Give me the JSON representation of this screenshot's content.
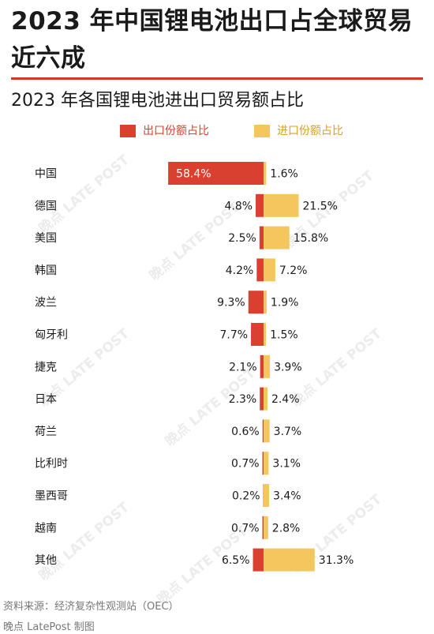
{
  "title": "2023 年中国锂电池出口占全球贸易近六成",
  "subtitle": "2023 年各国锂电池进出口贸易额占比",
  "source": "资料来源：经济复杂性观测站（OEC）",
  "credit": "晚点 LatePost 制图",
  "colors": {
    "export": "#d9402f",
    "import": "#f4c65e",
    "rule": "#d8382b",
    "watermark": "#ececec"
  },
  "watermark": "晚点 LATE POST",
  "chart_data": {
    "type": "bar",
    "orientation": "horizontal",
    "layout": "diverging",
    "unit": "%",
    "categories": [
      "中国",
      "德国",
      "美国",
      "韩国",
      "波兰",
      "匈牙利",
      "捷克",
      "日本",
      "荷兰",
      "比利时",
      "墨西哥",
      "越南",
      "其他"
    ],
    "series": [
      {
        "name": "出口份额占比",
        "direction": "left",
        "values": [
          58.4,
          4.8,
          2.5,
          4.2,
          9.3,
          7.7,
          2.1,
          2.3,
          0.6,
          0.7,
          0.2,
          0.7,
          6.5
        ],
        "labels": [
          "58.4%",
          "4.8%",
          "2.5%",
          "4.2%",
          "9.3%",
          "7.7%",
          "2.1%",
          "2.3%",
          "0.6%",
          "0.7%",
          "0.2%",
          "0.7%",
          "6.5%"
        ]
      },
      {
        "name": "进口份额占比",
        "direction": "right",
        "values": [
          1.6,
          21.5,
          15.8,
          7.2,
          1.9,
          1.5,
          3.9,
          2.4,
          3.7,
          3.1,
          3.4,
          2.8,
          31.3
        ],
        "labels": [
          "1.6%",
          "21.5%",
          "15.8%",
          "7.2%",
          "1.9%",
          "1.5%",
          "3.9%",
          "2.4%",
          "3.7%",
          "3.1%",
          "3.4%",
          "2.8%",
          "31.3%"
        ]
      }
    ],
    "legend_position": "top",
    "grid": false
  }
}
